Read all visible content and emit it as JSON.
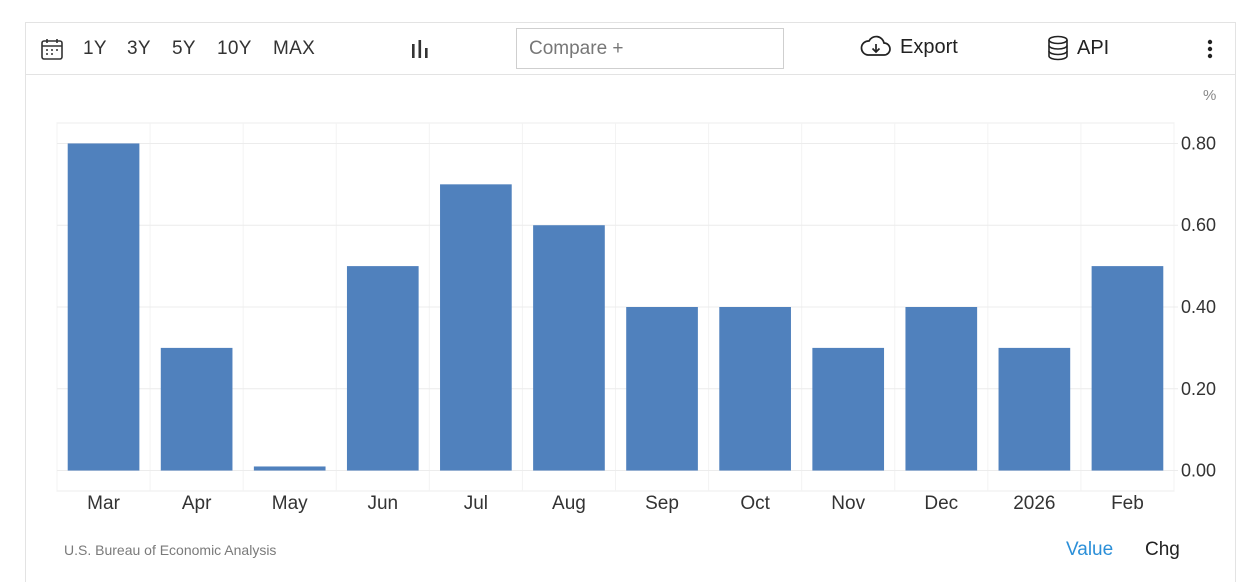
{
  "toolbar": {
    "ranges": [
      "1Y",
      "3Y",
      "5Y",
      "10Y",
      "MAX"
    ],
    "compare_placeholder": "Compare +",
    "export_label": "Export",
    "api_label": "API",
    "icons": [
      "calendar-icon",
      "bar-chart-type-icon",
      "cloud-download-icon",
      "database-icon",
      "more-vertical-icon"
    ]
  },
  "unit_label": "%",
  "source": "U.S. Bureau of Economic Analysis",
  "toggle": {
    "value_label": "Value",
    "chg_label": "Chg",
    "active": "Value"
  },
  "colors": {
    "bar": "#5081bd",
    "active_toggle": "#2b8fd8",
    "grid": "#ececec"
  },
  "chart_data": {
    "type": "bar",
    "categories": [
      "Mar",
      "Apr",
      "May",
      "Jun",
      "Jul",
      "Aug",
      "Sep",
      "Oct",
      "Nov",
      "Dec",
      "2026",
      "Feb"
    ],
    "values": [
      0.8,
      0.3,
      0.01,
      0.5,
      0.7,
      0.6,
      0.4,
      0.4,
      0.3,
      0.4,
      0.3,
      0.5
    ],
    "yticks": [
      "0.00",
      "0.20",
      "0.40",
      "0.60",
      "0.80"
    ],
    "ylim": [
      -0.05,
      0.85
    ],
    "title": "",
    "xlabel": "",
    "ylabel": "%",
    "grid": true,
    "axis_position": "right"
  }
}
